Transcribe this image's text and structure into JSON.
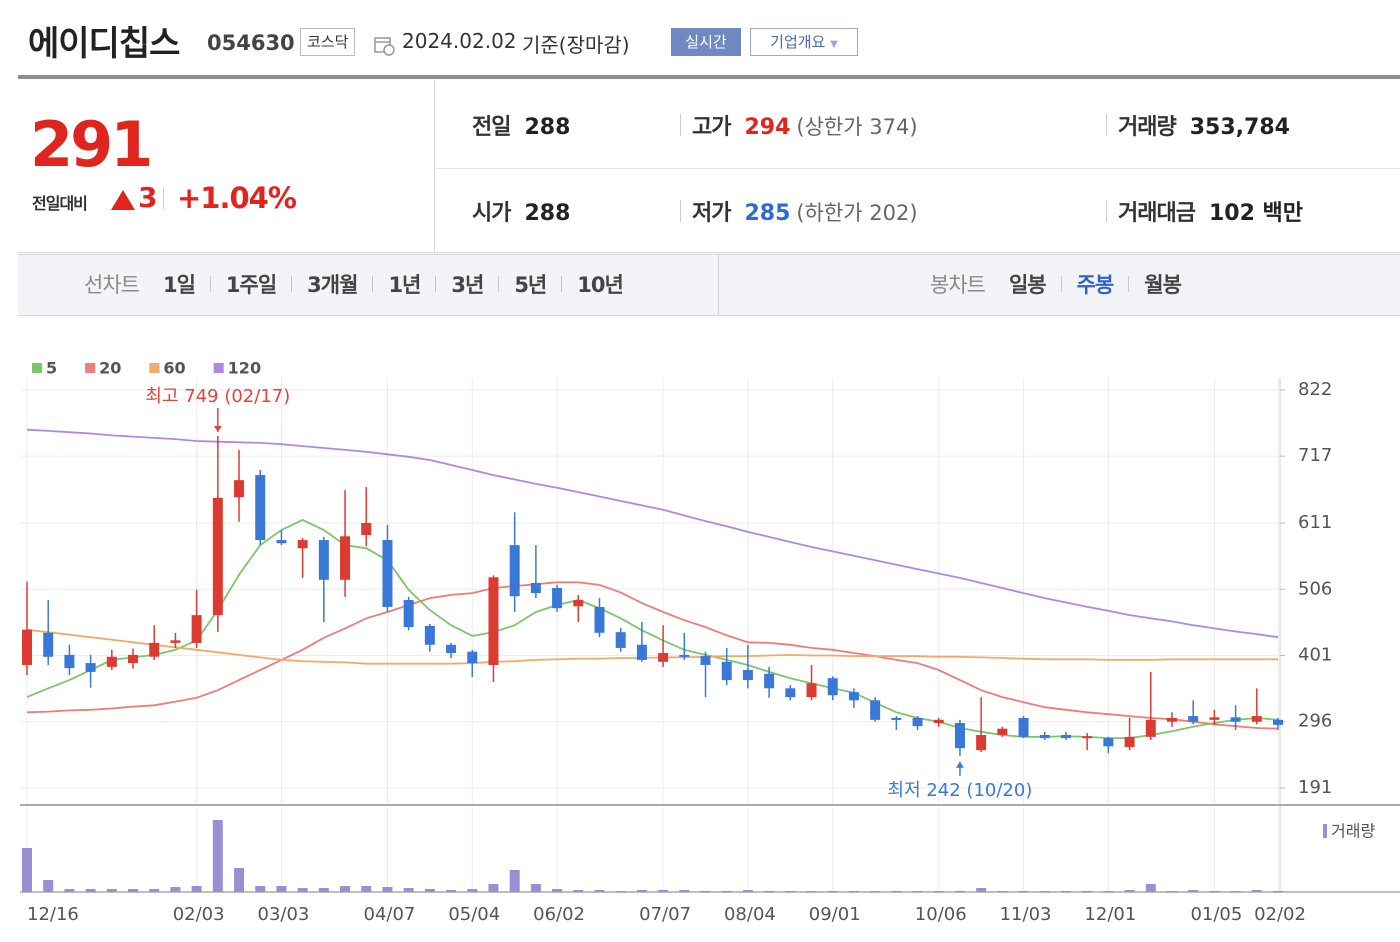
{
  "header": {
    "name": "에이디칩스",
    "code": "054630",
    "market": "코스닥",
    "date": "2024.02.02",
    "basis": "기준(장마감)",
    "buttons": [
      "실시간",
      "기업개요"
    ]
  },
  "quote": {
    "price": "291",
    "change_label": "전일대비",
    "change": "3",
    "change_pct": "+1.04%",
    "stats": [
      {
        "label": "전일",
        "value": "288"
      },
      {
        "label": "고가",
        "value": "294",
        "note": "(상한가 374)"
      },
      {
        "label": "거래량",
        "value": "353,784"
      },
      {
        "label": "시가",
        "value": "288"
      },
      {
        "label": "저가",
        "value": "285",
        "note": "(하한가 202)"
      },
      {
        "label": "거래대금",
        "value": "102 백만"
      }
    ]
  },
  "tabs": {
    "line_label": "선차트",
    "line": [
      "1일",
      "1주일",
      "3개월",
      "1년",
      "3년",
      "5년",
      "10년"
    ],
    "candle_label": "봉차트",
    "candle": [
      "일봉",
      "주봉",
      "월봉"
    ],
    "active_candle_tab": 1
  },
  "chart_data": {
    "type": "candlestick",
    "categories": [
      "12/16",
      null,
      null,
      null,
      null,
      null,
      null,
      null,
      "02/03",
      null,
      null,
      null,
      "03/03",
      null,
      null,
      null,
      null,
      "04/07",
      null,
      null,
      null,
      "05/04",
      null,
      null,
      null,
      "06/02",
      null,
      null,
      null,
      null,
      "07/07",
      null,
      null,
      null,
      "08/04",
      null,
      null,
      null,
      "09/01",
      null,
      null,
      null,
      null,
      "10/06",
      null,
      null,
      null,
      "11/03",
      null,
      null,
      null,
      "12/01",
      null,
      null,
      null,
      null,
      "01/05",
      null,
      null,
      "02/02"
    ],
    "open": [
      386,
      437,
      402,
      389,
      383,
      389,
      399,
      421,
      421,
      465,
      652,
      687,
      584,
      571,
      584,
      521,
      592,
      584,
      489,
      448,
      418,
      407,
      386,
      576,
      516,
      508,
      479,
      478,
      438,
      418,
      391,
      402,
      400,
      391,
      378,
      372,
      349,
      335,
      365,
      343,
      330,
      302,
      302,
      294,
      294,
      251,
      275,
      302,
      275,
      275,
      270,
      270,
      256,
      272,
      296,
      305,
      299,
      303,
      296,
      299
    ],
    "high": [
      518,
      489,
      418,
      402,
      410,
      412,
      449,
      437,
      505,
      749,
      727,
      695,
      600,
      587,
      589,
      663,
      668,
      608,
      494,
      451,
      421,
      410,
      528,
      628,
      576,
      513,
      497,
      492,
      445,
      454,
      449,
      437,
      407,
      413,
      418,
      383,
      354,
      386,
      368,
      349,
      335,
      305,
      305,
      302,
      299,
      335,
      288,
      305,
      280,
      280,
      278,
      272,
      302,
      375,
      311,
      330,
      315,
      322,
      349,
      302
    ],
    "low": [
      370,
      386,
      370,
      350,
      378,
      380,
      394,
      413,
      413,
      438,
      613,
      576,
      576,
      524,
      454,
      494,
      574,
      470,
      441,
      407,
      397,
      367,
      359,
      470,
      492,
      470,
      454,
      430,
      407,
      391,
      383,
      394,
      335,
      354,
      349,
      334,
      330,
      330,
      330,
      318,
      296,
      283,
      283,
      288,
      242,
      248,
      272,
      270,
      267,
      267,
      251,
      246,
      251,
      267,
      288,
      292,
      291,
      283,
      292,
      283
    ],
    "close": [
      442,
      399,
      381,
      375,
      399,
      402,
      421,
      425,
      465,
      651,
      679,
      584,
      579,
      584,
      521,
      590,
      611,
      478,
      446,
      418,
      405,
      389,
      525,
      495,
      500,
      476,
      489,
      437,
      413,
      394,
      405,
      399,
      386,
      362,
      362,
      349,
      335,
      357,
      338,
      330,
      299,
      299,
      289,
      299,
      254,
      275,
      285,
      272,
      270,
      270,
      273,
      257,
      272,
      299,
      302,
      296,
      303,
      296,
      305,
      291
    ],
    "up_color": "#dc3b32",
    "down_color": "#3a78d8",
    "ylim": [
      164,
      833
    ],
    "yticks": [
      191,
      296,
      401,
      506,
      611,
      717,
      822
    ],
    "grid": true,
    "series": [
      {
        "name": "5",
        "color": "#7cc66b",
        "values": [
          335,
          349,
          362,
          378,
          394,
          398,
          402,
          410,
          425,
          473,
          529,
          576,
          600,
          616,
          600,
          576,
          571,
          552,
          505,
          473,
          449,
          432,
          438,
          449,
          470,
          481,
          489,
          476,
          460,
          441,
          425,
          410,
          402,
          394,
          386,
          375,
          365,
          357,
          349,
          342,
          326,
          311,
          302,
          296,
          286,
          280,
          275,
          272,
          272,
          273,
          272,
          270,
          270,
          275,
          281,
          288,
          294,
          299,
          302,
          299
        ]
      },
      {
        "name": "20",
        "color": "#ee7c78",
        "values": [
          311,
          312,
          314,
          315,
          317,
          320,
          322,
          328,
          334,
          346,
          362,
          378,
          394,
          410,
          429,
          444,
          460,
          470,
          481,
          492,
          497,
          500,
          508,
          511,
          514,
          517,
          517,
          513,
          501,
          484,
          470,
          457,
          446,
          433,
          422,
          421,
          418,
          413,
          410,
          405,
          400,
          394,
          389,
          378,
          362,
          346,
          335,
          327,
          319,
          315,
          311,
          308,
          305,
          302,
          300,
          296,
          292,
          289,
          286,
          285
        ]
      },
      {
        "name": "60",
        "color": "#f3aa68",
        "values": [
          442,
          438,
          434,
          430,
          426,
          422,
          418,
          414,
          410,
          406,
          402,
          398,
          394,
          392,
          391,
          390,
          388,
          388,
          388,
          388,
          388,
          389,
          391,
          392,
          394,
          395,
          396,
          396,
          397,
          397,
          398,
          398,
          399,
          400,
          400,
          401,
          402,
          401,
          401,
          400,
          400,
          400,
          400,
          399,
          399,
          398,
          397,
          396,
          395,
          395,
          395,
          394,
          394,
          394,
          395,
          395,
          395,
          395,
          395,
          395
        ]
      },
      {
        "name": "120",
        "color": "#b088e4",
        "values": [
          759,
          757,
          755,
          753,
          750,
          748,
          746,
          744,
          741,
          740,
          739,
          738,
          736,
          733,
          730,
          727,
          724,
          720,
          716,
          711,
          703,
          695,
          687,
          680,
          673,
          667,
          660,
          653,
          646,
          639,
          632,
          623,
          614,
          606,
          597,
          589,
          581,
          573,
          566,
          559,
          552,
          545,
          538,
          531,
          524,
          516,
          508,
          500,
          492,
          485,
          478,
          472,
          465,
          460,
          455,
          449,
          444,
          439,
          435,
          430
        ]
      }
    ],
    "annotations": [
      {
        "text": "최고 749 (02/17)",
        "index": 9,
        "value": 749,
        "color": "#e0453a"
      },
      {
        "text": "최저 242 (10/20)",
        "index": 44,
        "value": 242,
        "color": "#3a78d8"
      }
    ],
    "volume": {
      "label": "거래량",
      "color": "#9a8fd2",
      "ylim": [
        0,
        18000000
      ],
      "values": [
        11000000,
        3000000,
        750000,
        750000,
        750000,
        750000,
        750000,
        1250000,
        1500000,
        18000000,
        6000000,
        1500000,
        1500000,
        1000000,
        1000000,
        1500000,
        1500000,
        1250000,
        1000000,
        750000,
        500000,
        750000,
        2000000,
        5500000,
        2000000,
        750000,
        500000,
        500000,
        250000,
        500000,
        500000,
        500000,
        250000,
        250000,
        500000,
        250000,
        250000,
        250000,
        250000,
        250000,
        250000,
        250000,
        250000,
        250000,
        250000,
        1000000,
        250000,
        250000,
        250000,
        250000,
        250000,
        250000,
        500000,
        2000000,
        250000,
        500000,
        250000,
        250000,
        500000,
        250000
      ]
    }
  }
}
